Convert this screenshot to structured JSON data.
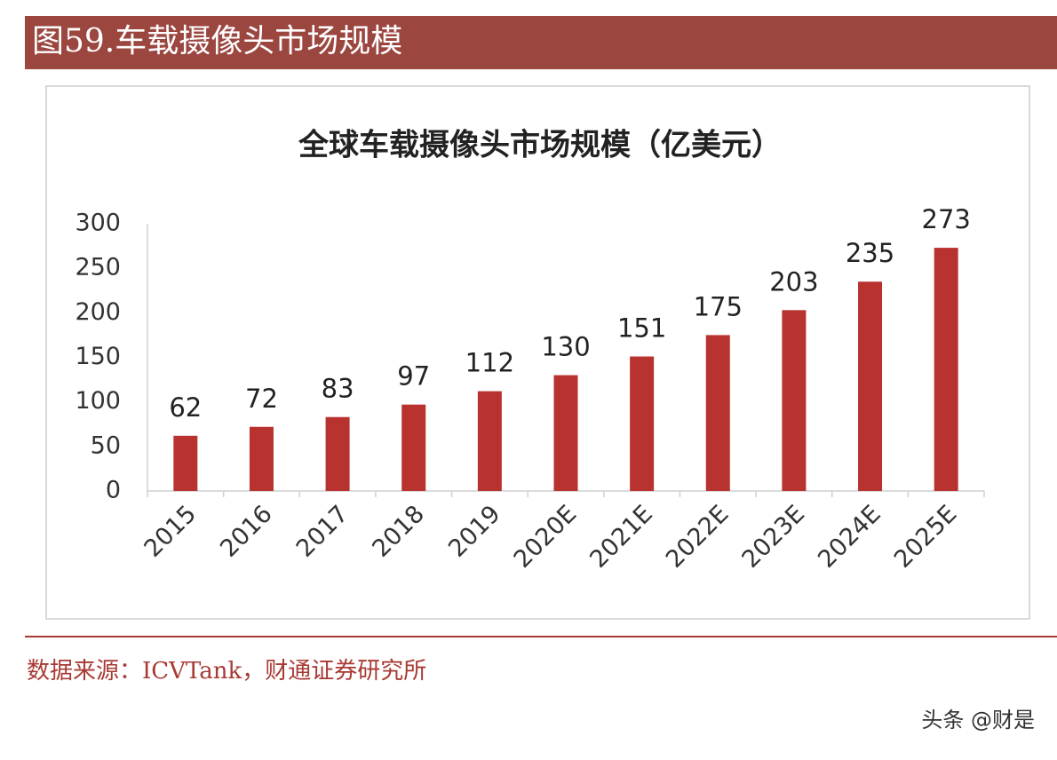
{
  "header_title": "图59.车载摄像头市场规模",
  "source": "数据来源：ICVTank，财通证券研究所",
  "watermark": "头条 @财是",
  "chart_data": {
    "type": "bar",
    "title": "全球车载摄像头市场规模（亿美元）",
    "categories": [
      "2015",
      "2016",
      "2017",
      "2018",
      "2019",
      "2020E",
      "2021E",
      "2022E",
      "2023E",
      "2024E",
      "2025E"
    ],
    "values": [
      62,
      72,
      83,
      97,
      112,
      130,
      151,
      175,
      203,
      235,
      273
    ],
    "color": "#b83330",
    "ylim": [
      0,
      300
    ],
    "yticks": [
      0,
      50,
      100,
      150,
      200,
      250,
      300
    ],
    "grid": false
  }
}
